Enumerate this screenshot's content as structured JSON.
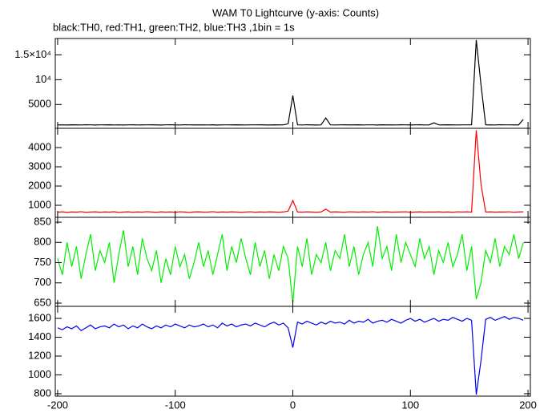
{
  "chart_data": {
    "type": "line",
    "title": "WAM T0 Lightcurve (y-axis: Counts)",
    "subtitle": "black:TH0, red:TH1, green:TH2, blue:TH3 ,1bin = 1s",
    "xlim": [
      -202,
      202
    ],
    "xticks": [
      -200,
      -100,
      0,
      100,
      200
    ],
    "x": [
      -200,
      -196,
      -192,
      -188,
      -184,
      -180,
      -176,
      -172,
      -168,
      -164,
      -160,
      -156,
      -152,
      -148,
      -144,
      -140,
      -136,
      -132,
      -128,
      -124,
      -120,
      -116,
      -112,
      -108,
      -104,
      -100,
      -96,
      -92,
      -88,
      -84,
      -80,
      -76,
      -72,
      -68,
      -64,
      -60,
      -56,
      -52,
      -48,
      -44,
      -40,
      -36,
      -32,
      -28,
      -24,
      -20,
      -16,
      -12,
      -8,
      -4,
      0,
      4,
      8,
      12,
      16,
      20,
      24,
      28,
      32,
      36,
      40,
      44,
      48,
      52,
      56,
      60,
      64,
      68,
      72,
      76,
      80,
      84,
      88,
      92,
      96,
      100,
      104,
      108,
      112,
      116,
      120,
      124,
      128,
      132,
      136,
      140,
      144,
      148,
      152,
      156,
      160,
      164,
      168,
      172,
      176,
      180,
      184,
      188,
      192,
      196
    ],
    "panels": [
      {
        "color": "#000000",
        "ylim": [
          200,
          18300
        ],
        "yticks": [
          5000,
          {
            "value": 10000,
            "label": "10⁴"
          },
          {
            "value": 15000,
            "label": "1.5×10⁴"
          }
        ],
        "values": [
          880,
          900,
          870,
          910,
          890,
          880,
          905,
          895,
          870,
          900,
          890,
          910,
          880,
          900,
          870,
          895,
          905,
          880,
          890,
          900,
          910,
          885,
          870,
          900,
          920,
          890,
          880,
          905,
          895,
          885,
          900,
          890,
          880,
          910,
          870,
          895,
          900,
          885,
          905,
          890,
          880,
          900,
          895,
          910,
          885,
          870,
          905,
          890,
          900,
          1100,
          6800,
          900,
          880,
          905,
          890,
          870,
          900,
          2300,
          895,
          880,
          900,
          910,
          885,
          890,
          905,
          880,
          900,
          895,
          870,
          910,
          890,
          900,
          880,
          905,
          895,
          885,
          900,
          910,
          880,
          890,
          1300,
          900,
          885,
          905,
          890,
          880,
          900,
          895,
          910,
          18000,
          9000,
          910,
          890,
          880,
          905,
          895,
          900,
          885,
          890,
          2000
        ]
      },
      {
        "color": "#ff0000",
        "ylim": [
          375,
          5000
        ],
        "yticks": [
          1000,
          2000,
          3000,
          4000
        ],
        "values": [
          640,
          660,
          630,
          655,
          645,
          670,
          635,
          650,
          660,
          640,
          655,
          645,
          665,
          630,
          650,
          660,
          640,
          655,
          645,
          670,
          650,
          635,
          660,
          645,
          655,
          640,
          665,
          650,
          630,
          655,
          660,
          645,
          650,
          670,
          640,
          655,
          645,
          660,
          650,
          635,
          650,
          665,
          640,
          655,
          645,
          660,
          650,
          640,
          655,
          700,
          1250,
          655,
          645,
          660,
          650,
          640,
          655,
          800,
          645,
          660,
          650,
          640,
          665,
          655,
          645,
          660,
          650,
          670,
          640,
          655,
          660,
          645,
          650,
          655,
          665,
          640,
          650,
          660,
          645,
          655,
          650,
          660,
          645,
          655,
          640,
          665,
          650,
          660,
          645,
          4900,
          2100,
          650,
          660,
          645,
          655,
          650,
          665,
          640,
          655,
          660
        ]
      },
      {
        "color": "#00ee00",
        "ylim": [
          642,
          862
        ],
        "yticks": [
          650,
          700,
          750,
          800,
          850
        ],
        "values": [
          760,
          720,
          800,
          740,
          790,
          710,
          770,
          820,
          730,
          780,
          750,
          800,
          700,
          770,
          830,
          740,
          790,
          720,
          810,
          760,
          730,
          780,
          700,
          760,
          720,
          790,
          740,
          770,
          710,
          750,
          800,
          740,
          780,
          720,
          770,
          820,
          730,
          790,
          750,
          810,
          760,
          720,
          800,
          740,
          780,
          710,
          770,
          730,
          790,
          760,
          650,
          790,
          740,
          810,
          720,
          770,
          750,
          800,
          730,
          780,
          760,
          820,
          740,
          790,
          720,
          770,
          800,
          740,
          840,
          760,
          790,
          730,
          820,
          750,
          800,
          770,
          740,
          810,
          760,
          790,
          720,
          780,
          750,
          800,
          740,
          770,
          820,
          730,
          790,
          660,
          700,
          780,
          750,
          810,
          740,
          790,
          770,
          820,
          760,
          800
        ]
      },
      {
        "color": "#0000ee",
        "ylim": [
          774,
          1728
        ],
        "yticks": [
          800,
          1000,
          1200,
          1400,
          1600
        ],
        "values": [
          1500,
          1480,
          1510,
          1490,
          1520,
          1470,
          1500,
          1530,
          1490,
          1510,
          1520,
          1500,
          1540,
          1510,
          1530,
          1490,
          1520,
          1500,
          1540,
          1510,
          1490,
          1520,
          1500,
          1530,
          1510,
          1540,
          1520,
          1500,
          1530,
          1510,
          1520,
          1540,
          1510,
          1530,
          1500,
          1550,
          1520,
          1540,
          1510,
          1530,
          1540,
          1520,
          1550,
          1530,
          1510,
          1540,
          1560,
          1530,
          1550,
          1500,
          1290,
          1560,
          1540,
          1570,
          1550,
          1530,
          1560,
          1540,
          1570,
          1550,
          1560,
          1540,
          1580,
          1550,
          1570,
          1560,
          1590,
          1550,
          1570,
          1580,
          1560,
          1590,
          1570,
          1550,
          1580,
          1600,
          1570,
          1590,
          1560,
          1580,
          1600,
          1570,
          1590,
          1580,
          1610,
          1590,
          1570,
          1600,
          1580,
          790,
          1150,
          1590,
          1610,
          1580,
          1600,
          1620,
          1590,
          1610,
          1600,
          1580
        ]
      }
    ]
  }
}
